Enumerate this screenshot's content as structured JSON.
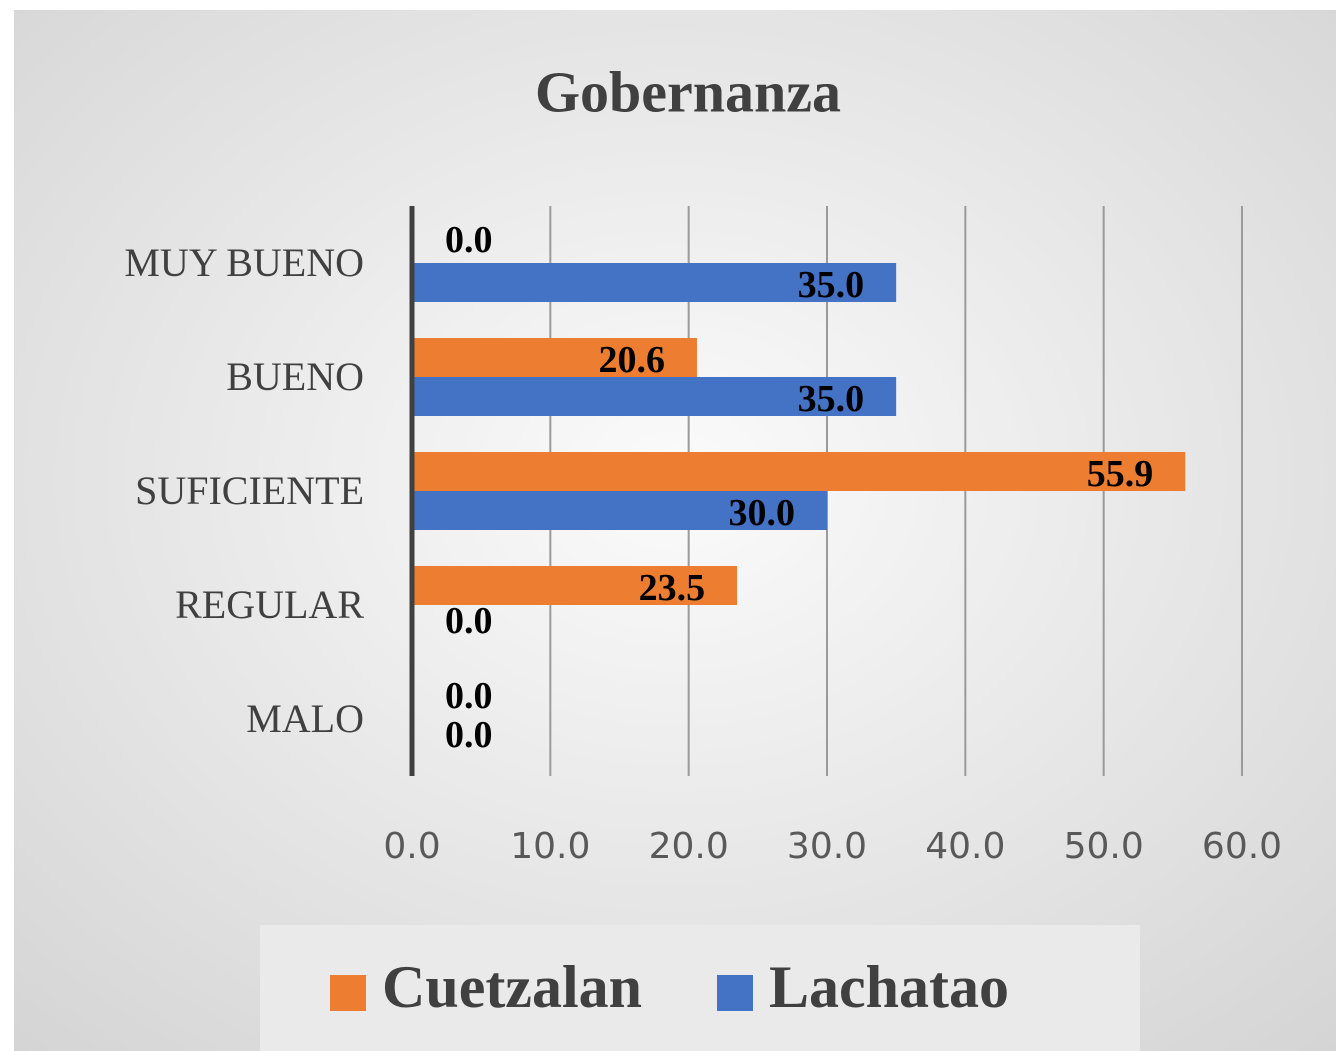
{
  "chart_data": {
    "type": "bar",
    "orientation": "horizontal",
    "title": "Gobernanza",
    "categories": [
      "MUY BUENO",
      "BUENO",
      "SUFICIENTE",
      "REGULAR",
      "MALO"
    ],
    "series": [
      {
        "name": "Cuetzalan",
        "color": "#ed7d31",
        "values": [
          0.0,
          20.6,
          55.9,
          23.5,
          0.0
        ],
        "value_labels": [
          "0.0",
          "20.6",
          "55.9",
          "23.5",
          "0.0"
        ]
      },
      {
        "name": "Lachatao",
        "color": "#4472c4",
        "values": [
          35.0,
          35.0,
          30.0,
          0.0,
          0.0
        ],
        "value_labels": [
          "35.0",
          "35.0",
          "30.0",
          "0.0",
          "0.0"
        ]
      }
    ],
    "xlim": [
      0,
      60
    ],
    "xticks": [
      {
        "value": 0,
        "label": "0.0"
      },
      {
        "value": 10,
        "label": "10.0"
      },
      {
        "value": 20,
        "label": "20.0"
      },
      {
        "value": 30,
        "label": "30.0"
      },
      {
        "value": 40,
        "label": "40.0"
      },
      {
        "value": 50,
        "label": "50.0"
      },
      {
        "value": 60,
        "label": "60.0"
      }
    ],
    "grid": true,
    "legend": "bottom"
  }
}
